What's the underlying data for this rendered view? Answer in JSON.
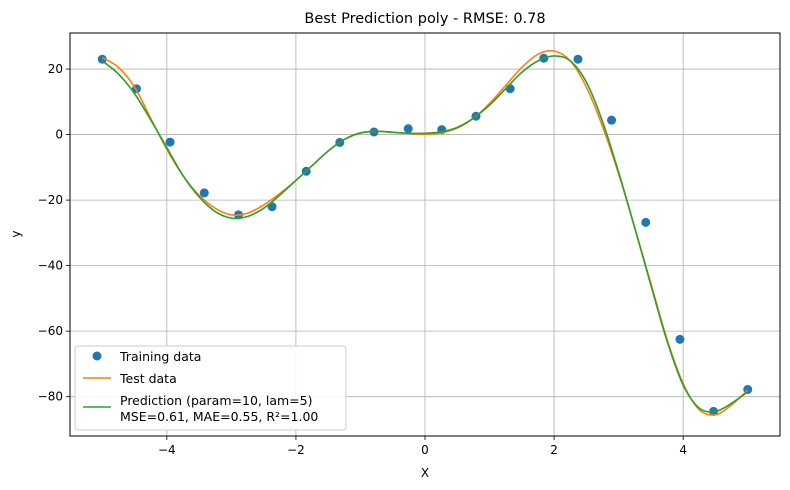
{
  "chart_data": {
    "type": "line",
    "title": "Best Prediction poly - RMSE: 0.78",
    "xlabel": "X",
    "ylabel": "y",
    "xlim": [
      -5.5,
      5.5
    ],
    "ylim": [
      -92,
      31
    ],
    "xticks": [
      -4,
      -2,
      0,
      2,
      4
    ],
    "xtick_labels": [
      "−4",
      "−2",
      "0",
      "2",
      "4"
    ],
    "yticks": [
      20,
      0,
      -20,
      -40,
      -60,
      -80
    ],
    "ytick_labels": [
      "20",
      "0",
      "−20",
      "−40",
      "−60",
      "−80"
    ],
    "grid": true,
    "legend_position": "lower-left",
    "series": [
      {
        "name": "Training data",
        "kind": "scatter",
        "color": "#1f77b4",
        "x": [
          -5.0,
          -4.47,
          -3.95,
          -3.42,
          -2.89,
          -2.37,
          -1.84,
          -1.32,
          -0.79,
          -0.26,
          0.26,
          0.79,
          1.32,
          1.84,
          2.37,
          2.89,
          3.42,
          3.95,
          4.47,
          5.0
        ],
        "y": [
          23.0,
          14.0,
          -2.3,
          -17.8,
          -24.5,
          -22.0,
          -11.2,
          -2.4,
          0.8,
          1.8,
          1.5,
          5.6,
          14.0,
          23.3,
          23.0,
          4.4,
          -26.8,
          -62.5,
          -84.5,
          -77.8
        ]
      },
      {
        "name": "Test data",
        "kind": "line",
        "color": "#ff7f0e",
        "x": [
          -5.0,
          -4.75,
          -4.5,
          -4.25,
          -4.0,
          -3.75,
          -3.5,
          -3.25,
          -3.0,
          -2.75,
          -2.5,
          -2.25,
          -2.0,
          -1.75,
          -1.5,
          -1.25,
          -1.0,
          -0.75,
          -0.5,
          -0.25,
          0.0,
          0.25,
          0.5,
          0.75,
          1.0,
          1.25,
          1.5,
          1.75,
          2.0,
          2.25,
          2.5,
          2.75,
          3.0,
          3.25,
          3.5,
          3.75,
          4.0,
          4.25,
          4.5,
          4.75,
          5.0
        ],
        "y": [
          23.5,
          20.5,
          14.5,
          5.0,
          -4.5,
          -12.5,
          -18.5,
          -22.5,
          -24.5,
          -24.0,
          -21.5,
          -18.0,
          -14.0,
          -9.5,
          -5.0,
          -1.5,
          0.5,
          1.0,
          0.7,
          0.3,
          0.1,
          0.5,
          2.0,
          5.0,
          9.5,
          15.0,
          20.5,
          24.5,
          25.5,
          22.5,
          14.5,
          2.5,
          -12.0,
          -28.5,
          -45.5,
          -62.5,
          -76.0,
          -84.0,
          -85.5,
          -82.5,
          -78.0
        ]
      },
      {
        "name": "Prediction (param=10, lam=5)",
        "name_line2": "MSE=0.61, MAE=0.55, R²=1.00",
        "kind": "line",
        "color": "#2ca02c",
        "x": [
          -5.0,
          -4.75,
          -4.5,
          -4.25,
          -4.0,
          -3.75,
          -3.5,
          -3.25,
          -3.0,
          -2.75,
          -2.5,
          -2.25,
          -2.0,
          -1.75,
          -1.5,
          -1.25,
          -1.0,
          -0.75,
          -0.5,
          -0.25,
          0.0,
          0.25,
          0.5,
          0.75,
          1.0,
          1.25,
          1.5,
          1.75,
          2.0,
          2.25,
          2.5,
          2.75,
          3.0,
          3.25,
          3.5,
          3.75,
          4.0,
          4.25,
          4.5,
          4.75,
          5.0
        ],
        "y": [
          22.5,
          18.5,
          12.5,
          4.5,
          -4.0,
          -12.5,
          -19.0,
          -23.5,
          -25.5,
          -25.0,
          -22.5,
          -18.5,
          -14.0,
          -9.5,
          -5.0,
          -1.5,
          0.5,
          1.0,
          0.7,
          0.4,
          0.4,
          0.8,
          2.2,
          5.0,
          9.0,
          14.0,
          19.0,
          22.5,
          24.0,
          22.5,
          16.0,
          4.0,
          -11.5,
          -28.5,
          -46.0,
          -63.0,
          -76.5,
          -83.5,
          -84.5,
          -82.0,
          -78.5
        ]
      }
    ]
  }
}
